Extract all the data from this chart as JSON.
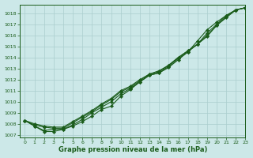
{
  "title": "Graphe pression niveau de la mer (hPa)",
  "background_color": "#cce8e8",
  "grid_color": "#aacece",
  "line_color": "#1a5c1a",
  "xlim": [
    -0.5,
    23
  ],
  "ylim": [
    1006.8,
    1018.8
  ],
  "yticks": [
    1007,
    1008,
    1009,
    1010,
    1011,
    1012,
    1013,
    1014,
    1015,
    1016,
    1017,
    1018
  ],
  "xticks": [
    0,
    1,
    2,
    3,
    4,
    5,
    6,
    7,
    8,
    9,
    10,
    11,
    12,
    13,
    14,
    15,
    16,
    17,
    18,
    19,
    20,
    21,
    22,
    23
  ],
  "lines": [
    [
      1008.3,
      1007.8,
      1007.3,
      1007.3,
      1007.5,
      1007.8,
      1008.2,
      1008.7,
      1009.3,
      1009.6,
      1010.5,
      1011.1,
      1011.8,
      1012.4,
      1012.6,
      1013.1,
      1013.8,
      1014.5,
      1015.5,
      1016.5,
      1017.2,
      1017.8,
      1018.3,
      1018.5
    ],
    [
      1008.3,
      1007.8,
      1007.4,
      1007.5,
      1007.5,
      1007.9,
      1008.4,
      1009.0,
      1009.5,
      1010.0,
      1010.7,
      1011.2,
      1011.8,
      1012.4,
      1012.6,
      1013.2,
      1013.9,
      1014.5,
      1015.2,
      1016.2,
      1017.0,
      1017.8,
      1018.3,
      1018.5
    ],
    [
      1008.3,
      1007.9,
      1007.7,
      1007.6,
      1007.6,
      1008.1,
      1008.6,
      1009.1,
      1009.7,
      1010.2,
      1010.9,
      1011.3,
      1011.9,
      1012.5,
      1012.7,
      1013.3,
      1014.0,
      1014.6,
      1015.2,
      1016.0,
      1016.9,
      1017.7,
      1018.3,
      1018.5
    ],
    [
      1008.3,
      1008.0,
      1007.8,
      1007.7,
      1007.7,
      1008.2,
      1008.7,
      1009.2,
      1009.8,
      1010.3,
      1011.0,
      1011.4,
      1012.0,
      1012.5,
      1012.8,
      1013.3,
      1014.0,
      1014.6,
      1015.2,
      1015.9,
      1016.9,
      1017.6,
      1018.3,
      1018.5
    ]
  ]
}
